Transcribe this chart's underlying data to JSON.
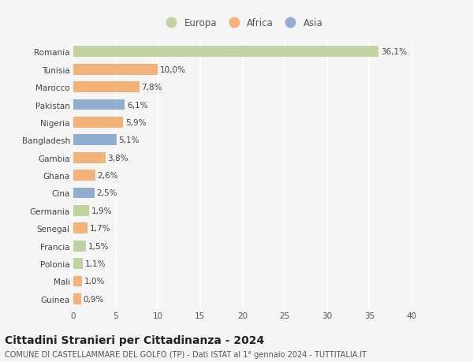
{
  "countries": [
    "Romania",
    "Tunisia",
    "Marocco",
    "Pakistan",
    "Nigeria",
    "Bangladesh",
    "Gambia",
    "Ghana",
    "Cina",
    "Germania",
    "Senegal",
    "Francia",
    "Polonia",
    "Mali",
    "Guinea"
  ],
  "values": [
    36.1,
    10.0,
    7.8,
    6.1,
    5.9,
    5.1,
    3.8,
    2.6,
    2.5,
    1.9,
    1.7,
    1.5,
    1.1,
    1.0,
    0.9
  ],
  "labels": [
    "36,1%",
    "10,0%",
    "7,8%",
    "6,1%",
    "5,9%",
    "5,1%",
    "3,8%",
    "2,6%",
    "2,5%",
    "1,9%",
    "1,7%",
    "1,5%",
    "1,1%",
    "1,0%",
    "0,9%"
  ],
  "continents": [
    "Europa",
    "Africa",
    "Africa",
    "Asia",
    "Africa",
    "Asia",
    "Africa",
    "Africa",
    "Asia",
    "Europa",
    "Africa",
    "Europa",
    "Europa",
    "Africa",
    "Africa"
  ],
  "colors": {
    "Europa": "#b5cc8e",
    "Africa": "#f4a460",
    "Asia": "#7b9fc7"
  },
  "xlim": [
    0,
    40
  ],
  "xticks": [
    0,
    5,
    10,
    15,
    20,
    25,
    30,
    35,
    40
  ],
  "title": "Cittadini Stranieri per Cittadinanza - 2024",
  "subtitle": "COMUNE DI CASTELLAMMARE DEL GOLFO (TP) - Dati ISTAT al 1° gennaio 2024 - TUTTITALIA.IT",
  "background_color": "#f5f5f5",
  "bar_height": 0.62,
  "grid_color": "#ffffff",
  "label_fontsize": 7.5,
  "tick_fontsize": 7.5,
  "title_fontsize": 10,
  "subtitle_fontsize": 7,
  "legend_fontsize": 8.5
}
